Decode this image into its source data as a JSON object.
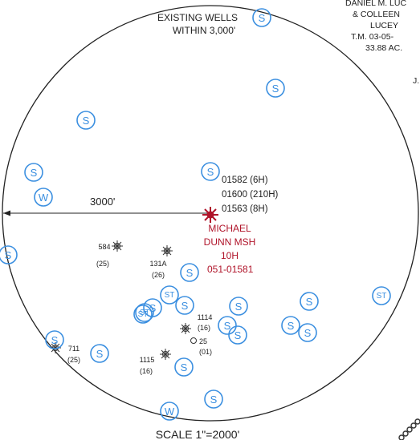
{
  "title_lines": [
    "EXISTING WELLS",
    "WITHIN 3,000'"
  ],
  "owner_lines": [
    "DANIEL M. LUC",
    "& COLLEEN",
    "LUCEY",
    "T.M. 03-05-",
    "33.88 AC."
  ],
  "corner_fragment": "J.",
  "radius_label": "3000'",
  "scale_label": "SCALE 1\"=2000'",
  "subject_well": {
    "permits": [
      "01582 (6H)",
      "01600 (210H)",
      "01563 (8H)"
    ],
    "name_lines": [
      "MICHAEL",
      "DUNN MSH",
      "10H"
    ],
    "api": "051-01581",
    "color": "#b0142a"
  },
  "wells": [
    {
      "id": "584",
      "sub": "(25)"
    },
    {
      "id": "131A",
      "sub": "(26)"
    },
    {
      "id": "711",
      "sub": "(25)"
    },
    {
      "id": "1114",
      "sub": "(16)"
    },
    {
      "id": "25",
      "sub": "(01)"
    },
    {
      "id": "1115",
      "sub": "(16)"
    }
  ],
  "symbols": [
    {
      "code": "S"
    },
    {
      "code": "S"
    },
    {
      "code": "S"
    },
    {
      "code": "S"
    },
    {
      "code": "W"
    },
    {
      "code": "S"
    },
    {
      "code": "S"
    },
    {
      "code": "S"
    },
    {
      "code": "S"
    },
    {
      "code": "ST"
    },
    {
      "code": "ST"
    },
    {
      "code": "S"
    },
    {
      "code": "S"
    },
    {
      "code": "S"
    },
    {
      "code": "ST"
    },
    {
      "code": "S"
    },
    {
      "code": "ST"
    },
    {
      "code": "S"
    },
    {
      "code": "S"
    },
    {
      "code": "S"
    },
    {
      "code": "S"
    },
    {
      "code": "S"
    },
    {
      "code": "S"
    },
    {
      "code": "W"
    },
    {
      "code": "S"
    }
  ],
  "colors": {
    "symbol": "#3b8fe0",
    "line": "#222222",
    "accent": "#b0142a"
  }
}
